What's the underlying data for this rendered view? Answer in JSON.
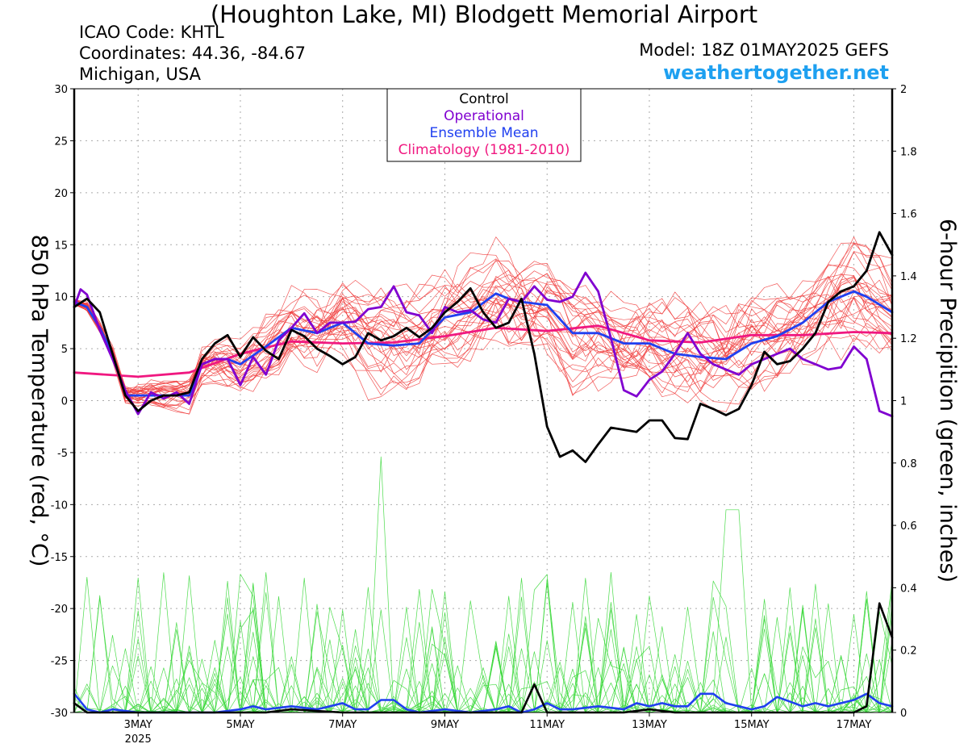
{
  "header": {
    "title": "(Houghton Lake, MI) Blodgett Memorial Airport",
    "icao": "ICAO Code: KHTL",
    "coords": "Coordinates: 44.36, -84.67",
    "region": "Michigan, USA",
    "model": "Model: 18Z 01MAY2025 GEFS",
    "site": "weathertogether.net"
  },
  "colors": {
    "members": "#f03a3a",
    "precip_members": "#3ad83a",
    "control": "#000000",
    "operational": "#8000d0",
    "mean": "#2040f0",
    "climatology": "#f01880",
    "site": "#1ea0f0"
  },
  "chart_data": {
    "type": "line",
    "xlabel": "",
    "ylabel_left": "850 hPa Temperature (red, °C)",
    "ylabel_right": "6-hour Precipition (green, inches)",
    "x_range": [
      "2025-05-01T18",
      "2025-05-17T18"
    ],
    "ylim_left": [
      -30,
      30
    ],
    "ylim_right": [
      0,
      2
    ],
    "grid": true,
    "x_ticks": [
      {
        "day": 3,
        "label": "3MAY",
        "year": "2025"
      },
      {
        "day": 5,
        "label": "5MAY",
        "year": ""
      },
      {
        "day": 7,
        "label": "7MAY",
        "year": ""
      },
      {
        "day": 9,
        "label": "9MAY",
        "year": ""
      },
      {
        "day": 11,
        "label": "11MAY",
        "year": ""
      },
      {
        "day": 13,
        "label": "13MAY",
        "year": ""
      },
      {
        "day": 15,
        "label": "15MAY",
        "year": ""
      },
      {
        "day": 17,
        "label": "17MAY",
        "year": ""
      }
    ],
    "y_ticks_left": [
      "30",
      "25",
      "20",
      "15",
      "10",
      "5",
      "0",
      "-5",
      "-10",
      "-15",
      "-20",
      "-25",
      "-30"
    ],
    "y_ticks_right": [
      "2",
      "1.8",
      "1.6",
      "1.4",
      "1.2",
      "1",
      "0.8",
      "0.6",
      "0.4",
      "0.2",
      "0"
    ],
    "legend": {
      "position": "top-center",
      "entries": [
        {
          "label": "Control",
          "color": "#000000"
        },
        {
          "label": "Operational",
          "color": "#8000d0"
        },
        {
          "label": "Ensemble Mean",
          "color": "#2040f0"
        },
        {
          "label": "Climatology (1981-2010)",
          "color": "#f01880"
        }
      ]
    },
    "temperature_series": {
      "control": {
        "x": [
          1.75,
          2.0,
          2.25,
          2.5,
          2.75,
          3.0,
          3.25,
          3.5,
          3.75,
          4.0,
          4.25,
          4.5,
          4.75,
          5.0,
          5.25,
          5.5,
          5.75,
          6.0,
          6.25,
          6.5,
          6.75,
          7.0,
          7.25,
          7.5,
          7.75,
          8.0,
          8.25,
          8.5,
          8.75,
          9.0,
          9.25,
          9.5,
          9.75,
          10.0,
          10.25,
          10.5,
          10.75,
          11.0,
          11.25,
          11.5,
          11.75,
          12.0,
          12.25,
          12.5,
          12.75,
          13.0,
          13.25,
          13.5,
          13.75,
          14.0,
          14.25,
          14.5,
          14.75,
          15.0,
          15.25,
          15.5,
          15.75,
          16.0,
          16.25,
          16.5,
          16.75,
          17.0,
          17.25,
          17.5,
          17.75
        ],
        "y": [
          9.0,
          9.8,
          8.5,
          4.5,
          0.5,
          -1.0,
          0.0,
          0.5,
          0.5,
          0.8,
          4.0,
          5.5,
          6.3,
          4.2,
          6.1,
          4.8,
          4.0,
          6.8,
          6.2,
          5.0,
          4.3,
          3.5,
          4.2,
          6.5,
          5.8,
          6.2,
          7.0,
          6.1,
          7.0,
          8.5,
          9.5,
          10.8,
          8.5,
          7.0,
          7.5,
          9.8,
          4.5,
          -2.5,
          -5.4,
          -4.8,
          -5.9,
          -4.2,
          -2.6,
          -2.8,
          -3.0,
          -1.9,
          -1.9,
          -3.6,
          -3.7,
          -0.3,
          -0.8,
          -1.4,
          -0.8,
          1.5,
          4.7,
          3.5,
          3.8,
          5.0,
          6.5,
          9.5,
          10.5,
          11.0,
          12.5,
          16.2,
          14.0
        ]
      },
      "operational": {
        "x": [
          1.75,
          1.875,
          2.0,
          2.25,
          2.5,
          2.75,
          3.0,
          3.25,
          3.5,
          3.75,
          4.0,
          4.25,
          4.5,
          4.75,
          5.0,
          5.25,
          5.5,
          5.75,
          6.0,
          6.25,
          6.5,
          6.75,
          7.0,
          7.25,
          7.5,
          7.75,
          8.0,
          8.25,
          8.5,
          8.75,
          9.0,
          9.25,
          9.5,
          9.75,
          10.0,
          10.25,
          10.5,
          10.75,
          11.0,
          11.25,
          11.5,
          11.75,
          12.0,
          12.25,
          12.5,
          12.75,
          13.0,
          13.25,
          13.5,
          13.75,
          14.0,
          14.25,
          14.5,
          14.75,
          15.0,
          15.25,
          15.5,
          15.75,
          16.0,
          16.25,
          16.5,
          16.75,
          17.0,
          17.25,
          17.5,
          17.75
        ],
        "y": [
          9.0,
          10.7,
          10.2,
          6.8,
          4.0,
          1.0,
          -1.3,
          0.8,
          0.2,
          0.8,
          -0.3,
          3.5,
          4.0,
          4.0,
          1.5,
          4.2,
          2.5,
          5.8,
          7.0,
          8.4,
          6.5,
          7.5,
          7.5,
          7.6,
          8.8,
          9.0,
          11.0,
          8.5,
          8.2,
          6.5,
          9.0,
          8.5,
          8.7,
          7.8,
          7.5,
          9.8,
          9.5,
          11.0,
          9.7,
          9.5,
          10.0,
          12.3,
          10.5,
          6.0,
          1.0,
          0.4,
          2.0,
          2.8,
          4.5,
          6.5,
          4.5,
          3.5,
          3.0,
          2.5,
          3.5,
          4.0,
          4.5,
          5.0,
          4.0,
          3.5,
          3.0,
          3.2,
          5.2,
          4.0,
          -1.0,
          -1.5
        ]
      },
      "mean": {
        "x": [
          1.75,
          2.0,
          2.25,
          2.5,
          2.75,
          3.0,
          3.5,
          3.75,
          4.0,
          4.25,
          4.5,
          4.75,
          5.0,
          5.5,
          6.0,
          6.5,
          7.0,
          7.5,
          8.0,
          8.5,
          9.0,
          9.5,
          10.0,
          10.25,
          10.5,
          11.0,
          11.5,
          12.0,
          12.5,
          13.0,
          13.5,
          14.0,
          14.5,
          15.0,
          15.5,
          16.0,
          16.5,
          17.0,
          17.25,
          17.75
        ],
        "y": [
          9.5,
          9.0,
          7.0,
          4.5,
          0.5,
          0.5,
          0.5,
          0.5,
          0.5,
          3.5,
          4.0,
          4.0,
          3.5,
          5.2,
          7.0,
          6.5,
          7.5,
          5.5,
          5.3,
          5.5,
          8.0,
          8.5,
          10.3,
          9.8,
          9.5,
          9.2,
          6.5,
          6.5,
          5.5,
          5.5,
          4.5,
          4.2,
          4.0,
          5.5,
          6.2,
          7.5,
          9.5,
          10.5,
          10.0,
          8.5
        ]
      },
      "climatology": {
        "x": [
          1.75,
          3.0,
          4.0,
          5.0,
          6.0,
          7.0,
          8.0,
          9.0,
          10.0,
          11.0,
          12.0,
          13.0,
          14.0,
          15.0,
          16.0,
          17.0,
          17.75
        ],
        "y": [
          2.7,
          2.3,
          2.7,
          4.5,
          5.7,
          5.5,
          5.6,
          6.2,
          7.0,
          6.7,
          7.2,
          5.8,
          5.6,
          6.3,
          6.3,
          6.6,
          6.5
        ]
      }
    },
    "precip_series": {
      "control": {
        "x": [
          1.75,
          2.0,
          2.5,
          3.0,
          4.0,
          5.0,
          5.5,
          6.0,
          7.0,
          8.0,
          9.0,
          10.0,
          10.5,
          10.75,
          11.0,
          11.5,
          12.0,
          12.5,
          13.0,
          13.5,
          14.0,
          15.0,
          16.0,
          16.5,
          17.0,
          17.25,
          17.5,
          17.75
        ],
        "y": [
          0.03,
          0.0,
          0.0,
          0.0,
          0.0,
          0.0,
          0.0,
          0.01,
          0.0,
          0.0,
          0.0,
          0.0,
          0.0,
          0.09,
          0.0,
          0.0,
          0.0,
          0.0,
          0.01,
          0.0,
          0.0,
          0.0,
          0.0,
          0.0,
          0.0,
          0.02,
          0.35,
          0.24
        ]
      },
      "mean": {
        "x": [
          1.75,
          2.0,
          2.25,
          2.5,
          3.0,
          3.5,
          4.0,
          4.5,
          5.0,
          5.25,
          5.5,
          6.0,
          6.5,
          6.75,
          7.0,
          7.25,
          7.5,
          7.75,
          8.0,
          8.25,
          8.5,
          9.0,
          9.5,
          10.0,
          10.25,
          10.5,
          10.75,
          11.0,
          11.25,
          11.5,
          12.0,
          12.5,
          12.75,
          13.0,
          13.25,
          13.5,
          13.75,
          14.0,
          14.25,
          14.5,
          14.75,
          15.0,
          15.25,
          15.5,
          16.0,
          16.25,
          16.5,
          16.75,
          17.0,
          17.25,
          17.5,
          17.75
        ],
        "y": [
          0.06,
          0.01,
          0.0,
          0.01,
          0.0,
          0.0,
          0.0,
          0.0,
          0.01,
          0.02,
          0.01,
          0.02,
          0.01,
          0.02,
          0.03,
          0.01,
          0.01,
          0.04,
          0.04,
          0.01,
          0.0,
          0.01,
          0.0,
          0.01,
          0.02,
          0.0,
          0.01,
          0.03,
          0.01,
          0.01,
          0.02,
          0.01,
          0.03,
          0.02,
          0.03,
          0.02,
          0.02,
          0.06,
          0.06,
          0.03,
          0.02,
          0.01,
          0.02,
          0.05,
          0.02,
          0.03,
          0.02,
          0.03,
          0.04,
          0.06,
          0.03,
          0.02
        ]
      }
    }
  }
}
